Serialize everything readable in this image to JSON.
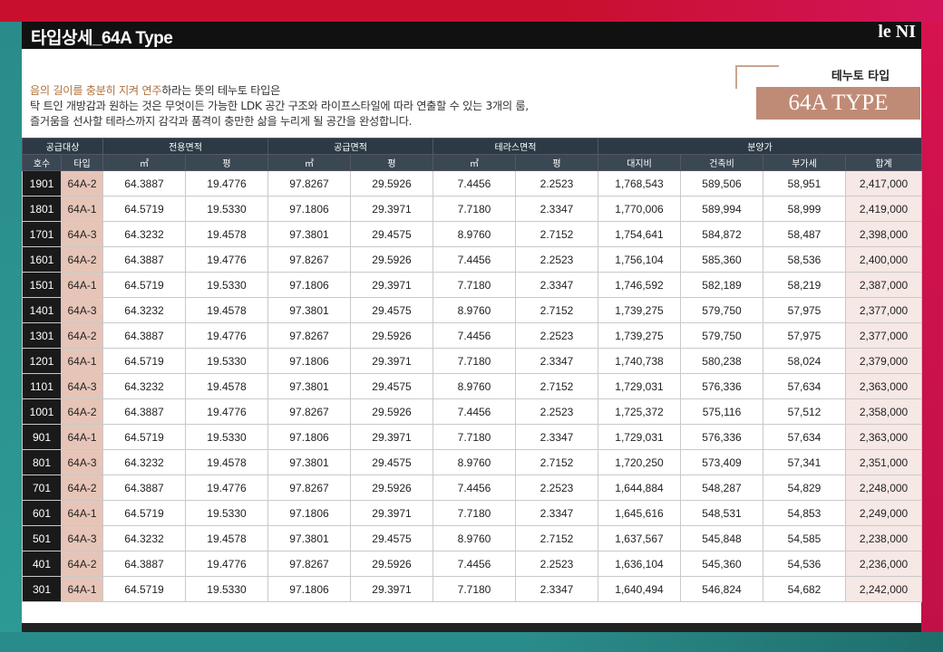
{
  "header": {
    "title": "타입상세_64A Type",
    "logo_main": "le NI",
    "logo_sub": ""
  },
  "intro": {
    "highlight": "음의 길이를 충분히 지켜 연주",
    "line1_rest": "하라는 뜻의 테누토 타입은",
    "line2": "탁 트인 개방감과 원하는 것은 무엇이든 가능한 LDK 공간 구조와 라이프스타일에 따라 연출할 수 있는 3개의 룸,",
    "line3": "즐거움을 선사할 테라스까지 감각과 품격이 충만한 삶을 누리게 될 공간을 완성합니다."
  },
  "type_box": {
    "label": "테누토 타입",
    "badge": "64A TYPE"
  },
  "table": {
    "group_headers": [
      "공급대상",
      "전용면적",
      "공급면적",
      "테라스면적",
      "분양가"
    ],
    "sub_headers": [
      "호수",
      "타입",
      "㎡",
      "평",
      "㎡",
      "평",
      "㎡",
      "평",
      "대지비",
      "건축비",
      "부가세",
      "합계"
    ],
    "rows": [
      [
        "1901",
        "64A-2",
        "64.3887",
        "19.4776",
        "97.8267",
        "29.5926",
        "7.4456",
        "2.2523",
        "1,768,543",
        "589,506",
        "58,951",
        "2,417,000"
      ],
      [
        "1801",
        "64A-1",
        "64.5719",
        "19.5330",
        "97.1806",
        "29.3971",
        "7.7180",
        "2.3347",
        "1,770,006",
        "589,994",
        "58,999",
        "2,419,000"
      ],
      [
        "1701",
        "64A-3",
        "64.3232",
        "19.4578",
        "97.3801",
        "29.4575",
        "8.9760",
        "2.7152",
        "1,754,641",
        "584,872",
        "58,487",
        "2,398,000"
      ],
      [
        "1601",
        "64A-2",
        "64.3887",
        "19.4776",
        "97.8267",
        "29.5926",
        "7.4456",
        "2.2523",
        "1,756,104",
        "585,360",
        "58,536",
        "2,400,000"
      ],
      [
        "1501",
        "64A-1",
        "64.5719",
        "19.5330",
        "97.1806",
        "29.3971",
        "7.7180",
        "2.3347",
        "1,746,592",
        "582,189",
        "58,219",
        "2,387,000"
      ],
      [
        "1401",
        "64A-3",
        "64.3232",
        "19.4578",
        "97.3801",
        "29.4575",
        "8.9760",
        "2.7152",
        "1,739,275",
        "579,750",
        "57,975",
        "2,377,000"
      ],
      [
        "1301",
        "64A-2",
        "64.3887",
        "19.4776",
        "97.8267",
        "29.5926",
        "7.4456",
        "2.2523",
        "1,739,275",
        "579,750",
        "57,975",
        "2,377,000"
      ],
      [
        "1201",
        "64A-1",
        "64.5719",
        "19.5330",
        "97.1806",
        "29.3971",
        "7.7180",
        "2.3347",
        "1,740,738",
        "580,238",
        "58,024",
        "2,379,000"
      ],
      [
        "1101",
        "64A-3",
        "64.3232",
        "19.4578",
        "97.3801",
        "29.4575",
        "8.9760",
        "2.7152",
        "1,729,031",
        "576,336",
        "57,634",
        "2,363,000"
      ],
      [
        "1001",
        "64A-2",
        "64.3887",
        "19.4776",
        "97.8267",
        "29.5926",
        "7.4456",
        "2.2523",
        "1,725,372",
        "575,116",
        "57,512",
        "2,358,000"
      ],
      [
        "901",
        "64A-1",
        "64.5719",
        "19.5330",
        "97.1806",
        "29.3971",
        "7.7180",
        "2.3347",
        "1,729,031",
        "576,336",
        "57,634",
        "2,363,000"
      ],
      [
        "801",
        "64A-3",
        "64.3232",
        "19.4578",
        "97.3801",
        "29.4575",
        "8.9760",
        "2.7152",
        "1,720,250",
        "573,409",
        "57,341",
        "2,351,000"
      ],
      [
        "701",
        "64A-2",
        "64.3887",
        "19.4776",
        "97.8267",
        "29.5926",
        "7.4456",
        "2.2523",
        "1,644,884",
        "548,287",
        "54,829",
        "2,248,000"
      ],
      [
        "601",
        "64A-1",
        "64.5719",
        "19.5330",
        "97.1806",
        "29.3971",
        "7.7180",
        "2.3347",
        "1,645,616",
        "548,531",
        "54,853",
        "2,249,000"
      ],
      [
        "501",
        "64A-3",
        "64.3232",
        "19.4578",
        "97.3801",
        "29.4575",
        "8.9760",
        "2.7152",
        "1,637,567",
        "545,848",
        "54,585",
        "2,238,000"
      ],
      [
        "401",
        "64A-2",
        "64.3887",
        "19.4776",
        "97.8267",
        "29.5926",
        "7.4456",
        "2.2523",
        "1,636,104",
        "545,360",
        "54,536",
        "2,236,000"
      ],
      [
        "301",
        "64A-1",
        "64.5719",
        "19.5330",
        "97.1806",
        "29.3971",
        "7.7180",
        "2.3347",
        "1,640,494",
        "546,824",
        "54,682",
        "2,242,000"
      ]
    ]
  },
  "colors": {
    "accent": "#c08b76",
    "header_bg": "#2b3a45",
    "type_cell": "#e6c5b8",
    "total_cell": "#f6e8e4"
  }
}
